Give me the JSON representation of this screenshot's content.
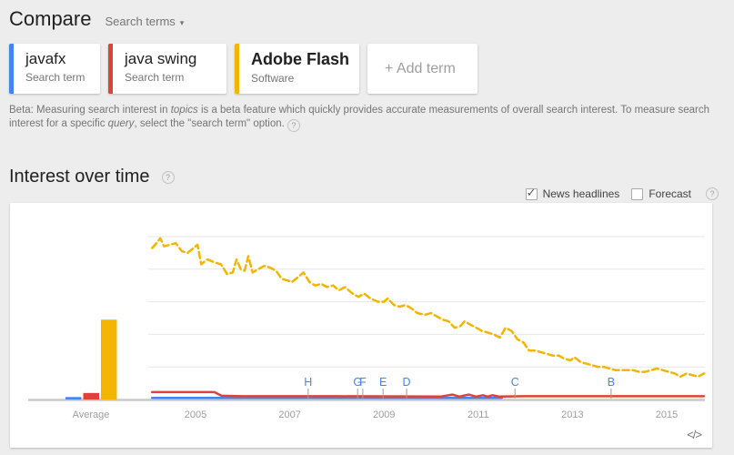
{
  "header": {
    "title": "Compare",
    "dropdown_label": "Search terms"
  },
  "icons": {
    "dropdown_arrow": "▾",
    "help": "?",
    "check": "✓",
    "embed": "</>"
  },
  "terms": [
    {
      "title": "javafx",
      "subtitle": "Search term",
      "color": "#4285f4"
    },
    {
      "title": "java swing",
      "subtitle": "Search term",
      "color": "#db4437"
    },
    {
      "title": "Adobe Flash",
      "subtitle": "Software",
      "color": "#f4b400"
    }
  ],
  "add_term_label": "+ Add term",
  "beta": {
    "part1": "Beta: Measuring search interest in ",
    "topics": "topics",
    "part2": " is a beta feature which quickly provides accurate measurements of overall search interest. To measure search interest for a specific ",
    "query": "query",
    "part3": ", select the \"search term\" option."
  },
  "section": {
    "title": "Interest over time"
  },
  "controls": {
    "news_headlines": {
      "label": "News headlines",
      "checked": true
    },
    "forecast": {
      "label": "Forecast",
      "checked": false
    }
  },
  "chart_data": {
    "type": "line",
    "title": "Interest over time",
    "x_axis": {
      "ticks": [
        2005,
        2007,
        2009,
        2011,
        2013,
        2015
      ],
      "range": [
        2004.0,
        2015.83
      ]
    },
    "y_axis": {
      "range": [
        0,
        100
      ],
      "gridlines": [
        20,
        40,
        60,
        80,
        100
      ],
      "tick_labels_visible": false
    },
    "average_label": "Average",
    "average_bars": [
      {
        "name": "javafx",
        "value": 1.5,
        "color": "#4285f4"
      },
      {
        "name": "java swing",
        "value": 4,
        "color": "#db4437"
      },
      {
        "name": "Adobe Flash",
        "value": 49,
        "color": "#f4b400"
      }
    ],
    "news_markers": [
      {
        "label": "H",
        "year": 2007.39
      },
      {
        "label": "G",
        "year": 2008.44
      },
      {
        "label": "F",
        "year": 2008.55
      },
      {
        "label": "E",
        "year": 2008.98
      },
      {
        "label": "D",
        "year": 2009.48
      },
      {
        "label": "C",
        "year": 2011.78
      },
      {
        "label": "B",
        "year": 2013.82
      }
    ],
    "marker_color": "#4285f4",
    "series": [
      {
        "name": "javafx",
        "color": "#4285f4",
        "style": "solid",
        "points": [
          [
            2004.08,
            1.0
          ],
          [
            2011.5,
            1.0
          ]
        ]
      },
      {
        "name": "java swing",
        "color": "#db4437",
        "style": "solid",
        "points": [
          [
            2004.08,
            4.5
          ],
          [
            2005.0,
            4.5
          ],
          [
            2005.4,
            4.5
          ],
          [
            2005.55,
            2.3
          ],
          [
            2006,
            2
          ],
          [
            2008,
            2
          ],
          [
            2010.2,
            1.8
          ],
          [
            2010.45,
            3
          ],
          [
            2010.6,
            1.8
          ],
          [
            2010.8,
            3
          ],
          [
            2010.95,
            1.8
          ],
          [
            2011.1,
            2.6
          ],
          [
            2011.2,
            1.8
          ],
          [
            2011.3,
            2.6
          ],
          [
            2011.45,
            1.8
          ],
          [
            2012,
            2
          ],
          [
            2013,
            2
          ],
          [
            2014,
            2
          ],
          [
            2015.79,
            2
          ]
        ]
      },
      {
        "name": "Adobe Flash",
        "color": "#f4b400",
        "style": "dashed",
        "points": [
          [
            2004.08,
            93
          ],
          [
            2004.17,
            96
          ],
          [
            2004.25,
            99
          ],
          [
            2004.33,
            94
          ],
          [
            2004.46,
            95
          ],
          [
            2004.58,
            96
          ],
          [
            2004.71,
            91
          ],
          [
            2004.83,
            90
          ],
          [
            2004.96,
            93
          ],
          [
            2005.04,
            95
          ],
          [
            2005.12,
            83
          ],
          [
            2005.25,
            86
          ],
          [
            2005.42,
            84
          ],
          [
            2005.54,
            83
          ],
          [
            2005.67,
            77
          ],
          [
            2005.79,
            78
          ],
          [
            2005.87,
            86
          ],
          [
            2005.96,
            80
          ],
          [
            2006.04,
            79
          ],
          [
            2006.12,
            88
          ],
          [
            2006.21,
            78
          ],
          [
            2006.33,
            80
          ],
          [
            2006.46,
            82
          ],
          [
            2006.58,
            81
          ],
          [
            2006.71,
            79
          ],
          [
            2006.83,
            74
          ],
          [
            2006.96,
            73
          ],
          [
            2007.04,
            72
          ],
          [
            2007.17,
            75
          ],
          [
            2007.29,
            78
          ],
          [
            2007.42,
            72
          ],
          [
            2007.54,
            70
          ],
          [
            2007.67,
            71
          ],
          [
            2007.79,
            69
          ],
          [
            2007.92,
            70
          ],
          [
            2008.04,
            67
          ],
          [
            2008.17,
            69
          ],
          [
            2008.33,
            65
          ],
          [
            2008.46,
            63
          ],
          [
            2008.58,
            65
          ],
          [
            2008.71,
            62
          ],
          [
            2008.87,
            60
          ],
          [
            2009.0,
            60
          ],
          [
            2009.08,
            62
          ],
          [
            2009.21,
            58
          ],
          [
            2009.33,
            57
          ],
          [
            2009.46,
            58
          ],
          [
            2009.58,
            56
          ],
          [
            2009.71,
            53
          ],
          [
            2009.87,
            52
          ],
          [
            2010.0,
            53
          ],
          [
            2010.12,
            51
          ],
          [
            2010.25,
            49
          ],
          [
            2010.37,
            48
          ],
          [
            2010.5,
            44
          ],
          [
            2010.62,
            45
          ],
          [
            2010.71,
            48
          ],
          [
            2010.83,
            46
          ],
          [
            2010.96,
            44
          ],
          [
            2011.08,
            42
          ],
          [
            2011.21,
            41
          ],
          [
            2011.33,
            40
          ],
          [
            2011.46,
            38
          ],
          [
            2011.58,
            44
          ],
          [
            2011.71,
            42
          ],
          [
            2011.83,
            37
          ],
          [
            2011.96,
            35
          ],
          [
            2012.08,
            30
          ],
          [
            2012.21,
            30
          ],
          [
            2012.33,
            29
          ],
          [
            2012.46,
            28
          ],
          [
            2012.58,
            27
          ],
          [
            2012.71,
            27
          ],
          [
            2012.83,
            25
          ],
          [
            2012.96,
            24
          ],
          [
            2013.04,
            26
          ],
          [
            2013.17,
            23
          ],
          [
            2013.29,
            22
          ],
          [
            2013.42,
            21
          ],
          [
            2013.54,
            20
          ],
          [
            2013.67,
            20
          ],
          [
            2013.79,
            19
          ],
          [
            2013.92,
            18
          ],
          [
            2014.04,
            18
          ],
          [
            2014.17,
            18
          ],
          [
            2014.29,
            18
          ],
          [
            2014.42,
            17
          ],
          [
            2014.54,
            17
          ],
          [
            2014.67,
            18
          ],
          [
            2014.79,
            19
          ],
          [
            2014.92,
            18
          ],
          [
            2015.04,
            17
          ],
          [
            2015.17,
            16
          ],
          [
            2015.29,
            14
          ],
          [
            2015.42,
            16
          ],
          [
            2015.54,
            15
          ],
          [
            2015.67,
            14
          ],
          [
            2015.79,
            16
          ]
        ]
      }
    ]
  }
}
